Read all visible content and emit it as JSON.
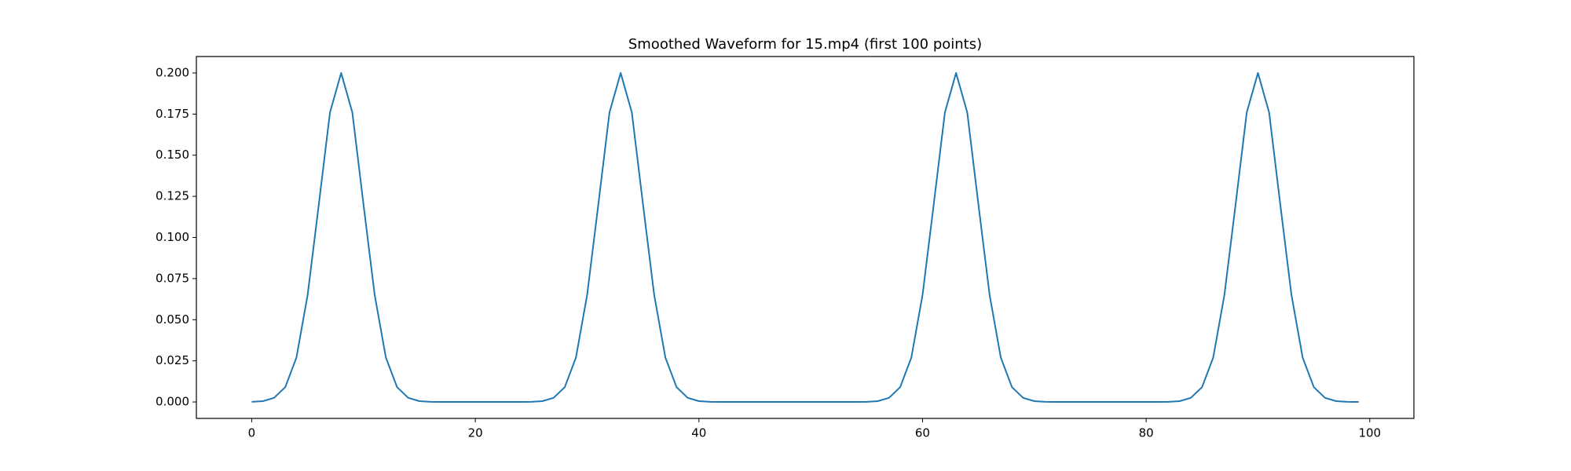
{
  "chart_data": {
    "type": "line",
    "title": "Smoothed Waveform for 15.mp4 (first 100 points)",
    "x": [
      0,
      1,
      2,
      3,
      4,
      5,
      6,
      7,
      8,
      9,
      10,
      11,
      12,
      13,
      14,
      15,
      16,
      17,
      18,
      19,
      20,
      21,
      22,
      23,
      24,
      25,
      26,
      27,
      28,
      29,
      30,
      31,
      32,
      33,
      34,
      35,
      36,
      37,
      38,
      39,
      40,
      41,
      42,
      43,
      44,
      45,
      46,
      47,
      48,
      49,
      50,
      51,
      52,
      53,
      54,
      55,
      56,
      57,
      58,
      59,
      60,
      61,
      62,
      63,
      64,
      65,
      66,
      67,
      68,
      69,
      70,
      71,
      72,
      73,
      74,
      75,
      76,
      77,
      78,
      79,
      80,
      81,
      82,
      83,
      84,
      85,
      86,
      87,
      88,
      89,
      90,
      91,
      92,
      93,
      94,
      95,
      96,
      97,
      98,
      99
    ],
    "series": [
      {
        "color": "#1f77b4",
        "values": [
          0.0001,
          0.0005,
          0.0025,
          0.009,
          0.027,
          0.065,
          0.12,
          0.176,
          0.2,
          0.176,
          0.12,
          0.065,
          0.027,
          0.009,
          0.0025,
          0.0005,
          0.0001,
          0,
          0,
          0,
          0,
          0,
          0,
          0,
          0,
          0.0001,
          0.0005,
          0.0025,
          0.009,
          0.027,
          0.065,
          0.12,
          0.176,
          0.2,
          0.176,
          0.12,
          0.065,
          0.027,
          0.009,
          0.0025,
          0.0005,
          0.0001,
          0,
          0,
          0,
          0,
          0,
          0,
          0,
          0,
          0,
          0,
          0,
          0,
          0,
          0.0001,
          0.0005,
          0.0025,
          0.009,
          0.027,
          0.065,
          0.12,
          0.176,
          0.2,
          0.176,
          0.12,
          0.065,
          0.027,
          0.009,
          0.0025,
          0.0005,
          0.0001,
          0,
          0,
          0,
          0,
          0,
          0,
          0,
          0,
          0,
          0,
          0.0001,
          0.0005,
          0.0025,
          0.009,
          0.027,
          0.065,
          0.12,
          0.176,
          0.2,
          0.176,
          0.12,
          0.065,
          0.027,
          0.009,
          0.0025,
          0.0005,
          0.0001,
          0
        ]
      }
    ],
    "xlim": [
      -4.95,
      103.95
    ],
    "ylim": [
      -0.01,
      0.21
    ],
    "xticks": [
      0,
      20,
      40,
      60,
      80,
      100
    ],
    "yticks": [
      {
        "value": 0,
        "label": "0.000"
      },
      {
        "value": 0.025,
        "label": "0.025"
      },
      {
        "value": 0.05,
        "label": "0.050"
      },
      {
        "value": 0.075,
        "label": "0.075"
      },
      {
        "value": 0.1,
        "label": "0.100"
      },
      {
        "value": 0.125,
        "label": "0.125"
      },
      {
        "value": 0.15,
        "label": "0.150"
      },
      {
        "value": 0.175,
        "label": "0.175"
      },
      {
        "value": 0.2,
        "label": "0.200"
      }
    ],
    "grid": false
  }
}
